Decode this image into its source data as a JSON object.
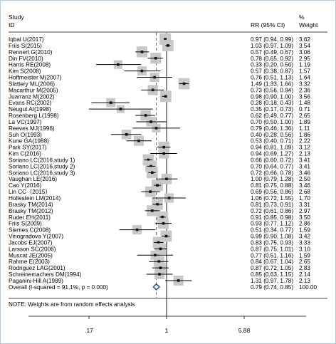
{
  "header": {
    "study_line1": "Study",
    "study_line2": "ID",
    "rr_label": "RR (95% CI)",
    "weight_line1": "%",
    "weight_line2": "Weight"
  },
  "note": "NOTE: Weights are from random effects analysis",
  "chart_data": {
    "type": "forest",
    "scale": "log",
    "x_ticks": [
      0.17,
      1,
      5.88
    ],
    "x_tick_labels": [
      ".17",
      "1",
      "5.88"
    ],
    "null_line": 1,
    "pooled_line": 0.79,
    "studies": [
      {
        "study": "Iqbal U(2017)",
        "rr": 0.97,
        "lo": 0.94,
        "hi": 0.99,
        "ci": "0.97 (0.94, 0.99)",
        "weight": "3.62"
      },
      {
        "study": "Friis S(2015)",
        "rr": 1.03,
        "lo": 0.97,
        "hi": 1.09,
        "ci": "1.03 (0.97, 1.09)",
        "weight": "3.54"
      },
      {
        "study": "Rennert G(2010)",
        "rr": 0.57,
        "lo": 0.49,
        "hi": 0.67,
        "ci": "0.57 (0.49, 0.67)",
        "weight": "3.06"
      },
      {
        "study": "Din FV(2010)",
        "rr": 0.78,
        "lo": 0.65,
        "hi": 0.92,
        "ci": "0.78 (0.65, 0.92)",
        "weight": "2.95"
      },
      {
        "study": "Harris RE(2008)",
        "rr": 0.33,
        "lo": 0.2,
        "hi": 0.56,
        "ci": "0.33 (0.20, 0.56)",
        "weight": "1.19"
      },
      {
        "study": "Kim S(2008)",
        "rr": 0.57,
        "lo": 0.38,
        "hi": 0.87,
        "ci": "0.57 (0.38, 0.87)",
        "weight": "1.57"
      },
      {
        "study": "Hoffmeister M(2007)",
        "rr": 0.76,
        "lo": 0.51,
        "hi": 1.13,
        "ci": "0.76 (0.51, 1.13)",
        "weight": "1.64"
      },
      {
        "study": "Slattery ML(2006)",
        "rr": 1.49,
        "lo": 1.33,
        "hi": 1.66,
        "ci": "1.49 (1.33, 1.66)",
        "weight": "3.32"
      },
      {
        "study": "Macarthur M(2005)",
        "rr": 0.73,
        "lo": 0.56,
        "hi": 0.94,
        "ci": "0.73 (0.56, 0.94)",
        "weight": "2.36"
      },
      {
        "study": "Juarranz M(2002)",
        "rr": 0.98,
        "lo": 0.9,
        "hi": 1.0,
        "ci": "0.98 (0.90, 1.00)",
        "weight": "3.56"
      },
      {
        "study": "Evans RC(2002)",
        "rr": 0.28,
        "lo": 0.18,
        "hi": 0.43,
        "ci": "0.28 (0.18, 0.43)",
        "weight": "1.48"
      },
      {
        "study": "Neugut AI(1998)",
        "rr": 0.35,
        "lo": 0.17,
        "hi": 0.73,
        "ci": "0.35 (0.17, 0.73)",
        "weight": "0.71"
      },
      {
        "study": "Rosenberg L(1998)",
        "rr": 0.62,
        "lo": 0.49,
        "hi": 0.77,
        "ci": "0.62 (0.49, 0.77)",
        "weight": "2.65"
      },
      {
        "study": "La VC(1997)",
        "rr": 0.7,
        "lo": 0.5,
        "hi": 1.0,
        "ci": "0.70 (0.50, 1.00)",
        "weight": "1.89"
      },
      {
        "study": "Reeves MJ(1996)",
        "rr": 0.79,
        "lo": 0.46,
        "hi": 1.36,
        "ci": "0.79 (0.46, 1.36)",
        "weight": "1.11"
      },
      {
        "study": "Suh O(1993)",
        "rr": 0.4,
        "lo": 0.28,
        "hi": 0.56,
        "ci": "0.40 (0.28, 0.56)",
        "weight": "1.86"
      },
      {
        "study": "Kune GA(1988)",
        "rr": 0.53,
        "lo": 0.4,
        "hi": 0.71,
        "ci": "0.53 (0.40, 0.71)",
        "weight": "2.22"
      },
      {
        "study": "Park SY(2017)",
        "rr": 0.94,
        "lo": 0.81,
        "hi": 1.09,
        "ci": "0.94 (0.81, 1.09)",
        "weight": "3.12"
      },
      {
        "study": "Kim C(2016)",
        "rr": 0.94,
        "lo": 0.69,
        "hi": 1.27,
        "ci": "0.94 (0.69, 1.27)",
        "weight": "2.13"
      },
      {
        "study": "Soriano LC(2016,study 1)",
        "rr": 0.66,
        "lo": 0.6,
        "hi": 0.72,
        "ci": "0.66 (0.60, 0.72)",
        "weight": "3.41"
      },
      {
        "study": "Soriano LC(2016,study 2)",
        "rr": 0.7,
        "lo": 0.64,
        "hi": 0.77,
        "ci": "0.70 (0.64, 0.77)",
        "weight": "3.41"
      },
      {
        "study": "Soriano LC(2016,study 3)",
        "rr": 0.72,
        "lo": 0.66,
        "hi": 0.78,
        "ci": "0.72 (0.66, 0.78)",
        "weight": "3.46"
      },
      {
        "study": "Vaughan LE(2016)",
        "rr": 1.0,
        "lo": 0.79,
        "hi": 1.28,
        "ci": "1.00 (0.79, 1.28)",
        "weight": "2.50"
      },
      {
        "study": "Cao Y(2016)",
        "rr": 0.81,
        "lo": 0.75,
        "hi": 0.88,
        "ci": "0.81 (0.75, 0.88)",
        "weight": "3.46"
      },
      {
        "study": "Lin CC（2015）",
        "rr": 0.69,
        "lo": 0.56,
        "hi": 0.86,
        "ci": "0.69 (0.56, 0.86)",
        "weight": "2.68"
      },
      {
        "study": "Hollestein LM(2014)",
        "rr": 1.06,
        "lo": 0.72,
        "hi": 1.55,
        "ci": "1.06 (0.72, 1.55)",
        "weight": "1.70"
      },
      {
        "study": "Brasky TM(2014)",
        "rr": 0.81,
        "lo": 0.73,
        "hi": 0.91,
        "ci": "0.81 (0.73, 0.91)",
        "weight": "3.31"
      },
      {
        "study": "Brasky TM(2012)",
        "rr": 0.72,
        "lo": 0.61,
        "hi": 0.86,
        "ci": "0.72 (0.61, 0.86)",
        "weight": "2.97"
      },
      {
        "study": "Ruder EH(2011)",
        "rr": 0.91,
        "lo": 0.85,
        "hi": 0.98,
        "ci": "0.91 (0.85, 0.98)",
        "weight": "3.50"
      },
      {
        "study": "Friis S(2009)",
        "rr": 0.93,
        "lo": 0.77,
        "hi": 1.12,
        "ci": "0.93 (0.77, 1.12)",
        "weight": "2.86"
      },
      {
        "study": "Siemes C(2008)",
        "rr": 0.51,
        "lo": 0.34,
        "hi": 0.77,
        "ci": "0.51 (0.34, 0.77)",
        "weight": "1.59"
      },
      {
        "study": "Vinogradova Y(2007)",
        "rr": 0.99,
        "lo": 0.9,
        "hi": 1.08,
        "ci": "0.99 (0.90, 1.08)",
        "weight": "3.42"
      },
      {
        "study": "Jacobs EJ(2007)",
        "rr": 0.83,
        "lo": 0.75,
        "hi": 0.93,
        "ci": "0.83 (0.75, 0.93)",
        "weight": "3.33"
      },
      {
        "study": "Larsson SC(2006)",
        "rr": 0.87,
        "lo": 0.75,
        "hi": 1.01,
        "ci": "0.87 (0.75, 1.01)",
        "weight": "3.10"
      },
      {
        "study": "Muscat JE(2005)",
        "rr": 0.77,
        "lo": 0.51,
        "hi": 1.16,
        "ci": "0.77 (0.51, 1.16)",
        "weight": "1.59"
      },
      {
        "study": "Rahme E(2003)",
        "rr": 0.84,
        "lo": 0.67,
        "hi": 1.04,
        "ci": "0.84 (0.67, 1.04)",
        "weight": "2.65"
      },
      {
        "study": "Rodriguez LAG(2001)",
        "rr": 0.87,
        "lo": 0.72,
        "hi": 1.05,
        "ci": "0.87 (0.72, 1.05)",
        "weight": "2.83"
      },
      {
        "study": "Schreinemachers DM(1994)",
        "rr": 0.85,
        "lo": 0.63,
        "hi": 1.15,
        "ci": "0.85 (0.63, 1.15)",
        "weight": "2.14"
      },
      {
        "study": "Paganini-Hill A(1989)",
        "rr": 1.31,
        "lo": 0.97,
        "hi": 1.78,
        "ci": "1.31 (0.97, 1.78)",
        "weight": "2.13"
      }
    ],
    "overall": {
      "label": "Overall  (I-squared = 91.1%, p = 0.000)",
      "rr": 0.79,
      "lo": 0.74,
      "hi": 0.85,
      "ci": "0.79 (0.74, 0.85)",
      "weight": "100.00"
    }
  }
}
